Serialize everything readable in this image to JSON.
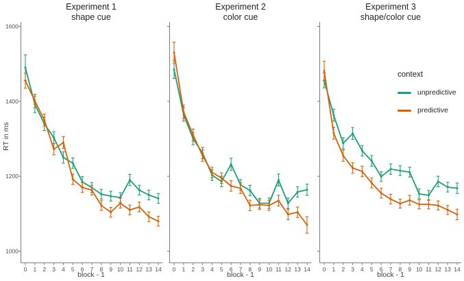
{
  "figure": {
    "background": "#ffffff",
    "axis_color": "#7a7a7a",
    "tick_label_color": "#4d4d4d"
  },
  "legend": {
    "title": "context",
    "entries": [
      {
        "label": "unpredictive",
        "color": "#1B9E77"
      },
      {
        "label": "predictive",
        "color": "#D95F02"
      }
    ]
  },
  "chart_data": {
    "type": "line",
    "title": "",
    "xlabel": "block - 1",
    "ylabel": "RT in ms",
    "x": [
      0,
      1,
      2,
      3,
      4,
      5,
      6,
      7,
      8,
      9,
      10,
      11,
      12,
      13,
      14
    ],
    "x_tick_labels": [
      "0",
      "1",
      "2",
      "3",
      "4",
      "5",
      "6",
      "7",
      "8",
      "9",
      "10",
      "11",
      "12",
      "13",
      "14"
    ],
    "y_ticks": [
      1000,
      1200,
      1400,
      1600
    ],
    "y_tick_labels": [
      "1000",
      "1200",
      "1400",
      "1600"
    ],
    "ylim": [
      975,
      1625
    ],
    "grid": false,
    "error_bars": true,
    "legend_position": "inside-right",
    "facets": [
      {
        "title_line1": "Experiment 1",
        "title_line2": "shape cue",
        "series": [
          {
            "name": "unpredictive",
            "color": "#1B9E77",
            "values": [
              1490,
              1392,
              1340,
              1303,
              1250,
              1235,
              1185,
              1170,
              1152,
              1147,
              1143,
              1190,
              1163,
              1150,
              1141
            ],
            "se": [
              34,
              22,
              18,
              16,
              15,
              14,
              14,
              13,
              13,
              13,
              13,
              15,
              13,
              13,
              13
            ]
          },
          {
            "name": "predictive",
            "color": "#D95F02",
            "values": [
              1455,
              1401,
              1350,
              1272,
              1290,
              1192,
              1170,
              1163,
              1122,
              1104,
              1128,
              1110,
              1118,
              1092,
              1080
            ],
            "se": [
              20,
              18,
              16,
              15,
              16,
              14,
              13,
              13,
              13,
              13,
              13,
              13,
              13,
              13,
              13
            ]
          }
        ]
      },
      {
        "title_line1": "Experiment 2",
        "title_line2": "color cue",
        "series": [
          {
            "name": "unpredictive",
            "color": "#1B9E77",
            "values": [
              1485,
              1365,
              1300,
              1262,
              1203,
              1186,
              1232,
              1177,
              1162,
              1128,
              1128,
              1190,
              1128,
              1158,
              1164
            ],
            "se": [
              24,
              18,
              16,
              15,
              14,
              14,
              16,
              14,
              14,
              13,
              14,
              16,
              14,
              14,
              15
            ]
          },
          {
            "name": "predictive",
            "color": "#D95F02",
            "values": [
              1530,
              1372,
              1310,
              1255,
              1210,
              1195,
              1174,
              1168,
              1122,
              1124,
              1122,
              1135,
              1098,
              1104,
              1070
            ],
            "se": [
              28,
              18,
              16,
              15,
              14,
              14,
              14,
              14,
              14,
              13,
              13,
              14,
              14,
              14,
              22
            ]
          }
        ]
      },
      {
        "title_line1": "Experiment 3",
        "title_line2": "shape/color cue",
        "series": [
          {
            "name": "unpredictive",
            "color": "#1B9E77",
            "values": [
              1456,
              1363,
              1288,
              1314,
              1268,
              1241,
              1199,
              1219,
              1215,
              1211,
              1153,
              1149,
              1186,
              1171,
              1168
            ],
            "se": [
              20,
              16,
              15,
              16,
              14,
              14,
              13,
              14,
              13,
              13,
              13,
              13,
              14,
              13,
              14
            ]
          },
          {
            "name": "predictive",
            "color": "#D95F02",
            "values": [
              1481,
              1315,
              1255,
              1222,
              1213,
              1182,
              1155,
              1139,
              1127,
              1136,
              1125,
              1125,
              1122,
              1110,
              1098
            ],
            "se": [
              26,
              16,
              15,
              14,
              14,
              13,
              13,
              13,
              12,
              13,
              12,
              12,
              12,
              12,
              14
            ]
          }
        ]
      }
    ]
  }
}
